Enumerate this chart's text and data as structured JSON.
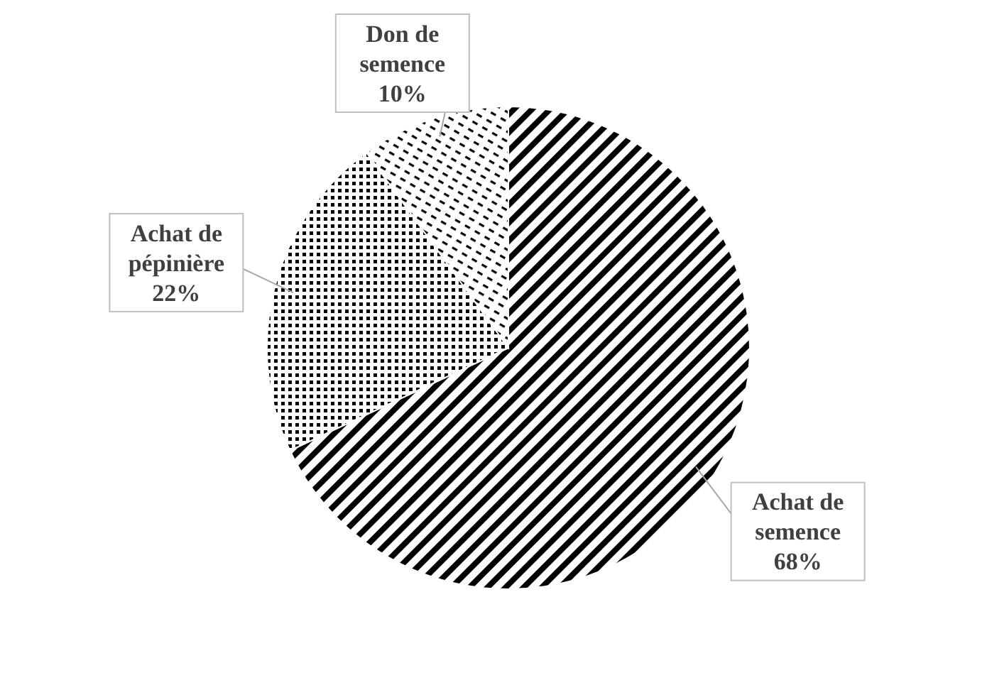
{
  "chart_data": {
    "type": "pie",
    "categories": [
      "Achat de semence",
      "Achat de pépinière",
      "Don de semence"
    ],
    "values": [
      68,
      22,
      10
    ],
    "value_labels": [
      "68%",
      "22%",
      "10%"
    ]
  }
}
